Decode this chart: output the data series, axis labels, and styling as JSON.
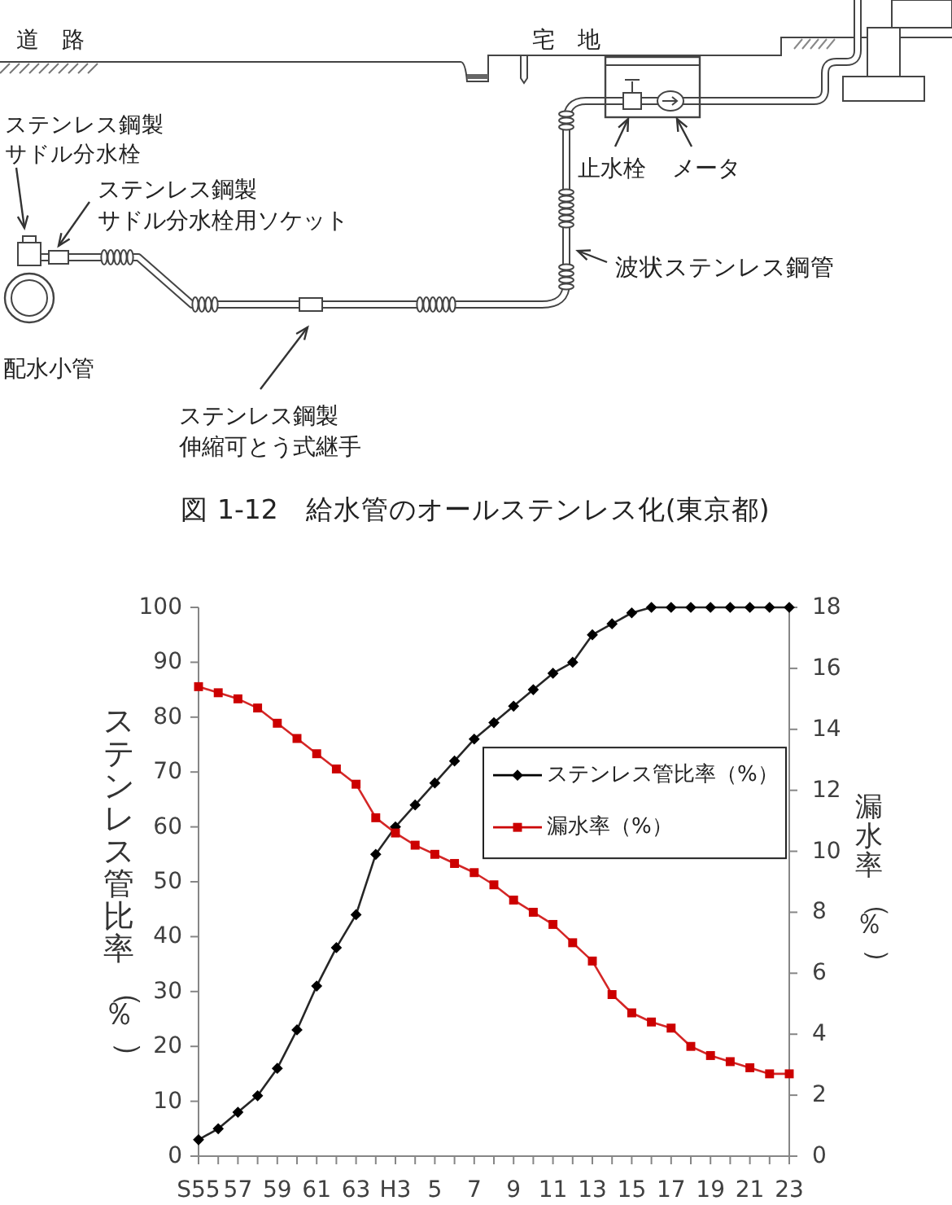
{
  "chart_data": {
    "type": "line",
    "annotations": [
      "道　路",
      "宅　地",
      "ステンレス鋼製",
      "サドル分水栓",
      "ステンレス鋼製",
      "サドル分水栓用ソケット",
      "配水小管",
      "ステンレス鋼製",
      "伸縮可とう式継手",
      "止水栓",
      "メータ",
      "波状ステンレス鋼管",
      "図 1-12　給水管のオールステンレス化(東京都)"
    ],
    "categories": [
      "S55",
      null,
      "57",
      null,
      "59",
      null,
      "61",
      null,
      "63",
      null,
      "H3",
      null,
      "5",
      null,
      "7",
      null,
      "9",
      null,
      "11",
      null,
      "13",
      null,
      "15",
      null,
      "17",
      null,
      "19",
      null,
      "21",
      null,
      "23"
    ],
    "series": [
      {
        "name": "ステンレス管比率（%）",
        "color": "#000000",
        "marker": "diamond",
        "values": [
          3,
          5,
          8,
          11,
          16,
          23,
          31,
          38,
          44,
          55,
          60,
          64,
          68,
          72,
          76,
          79,
          82,
          85,
          88,
          90,
          95,
          97,
          99,
          100,
          100,
          100,
          100,
          100,
          100,
          100,
          100
        ]
      },
      {
        "name": "漏水率（%）",
        "color": "#cc0000",
        "marker": "square",
        "axis": "y2",
        "values": [
          15.4,
          15.2,
          15.0,
          14.7,
          14.2,
          13.7,
          13.2,
          12.7,
          12.2,
          11.1,
          10.6,
          10.2,
          9.9,
          9.6,
          9.3,
          8.9,
          8.4,
          8.0,
          7.6,
          7.0,
          6.4,
          5.3,
          4.7,
          4.4,
          4.2,
          3.6,
          3.3,
          3.1,
          2.9,
          2.7,
          2.7
        ]
      }
    ],
    "ylabel": "ステンレス管比率（％）",
    "y2label": "漏水率（％）",
    "ylim": [
      0,
      100
    ],
    "yticks": [
      0,
      10,
      20,
      30,
      40,
      50,
      60,
      70,
      80,
      90,
      100
    ],
    "y2lim": [
      0,
      18
    ],
    "y2ticks": [
      0,
      2,
      4,
      6,
      8,
      10,
      12,
      14,
      16,
      18
    ],
    "legend": "right"
  }
}
